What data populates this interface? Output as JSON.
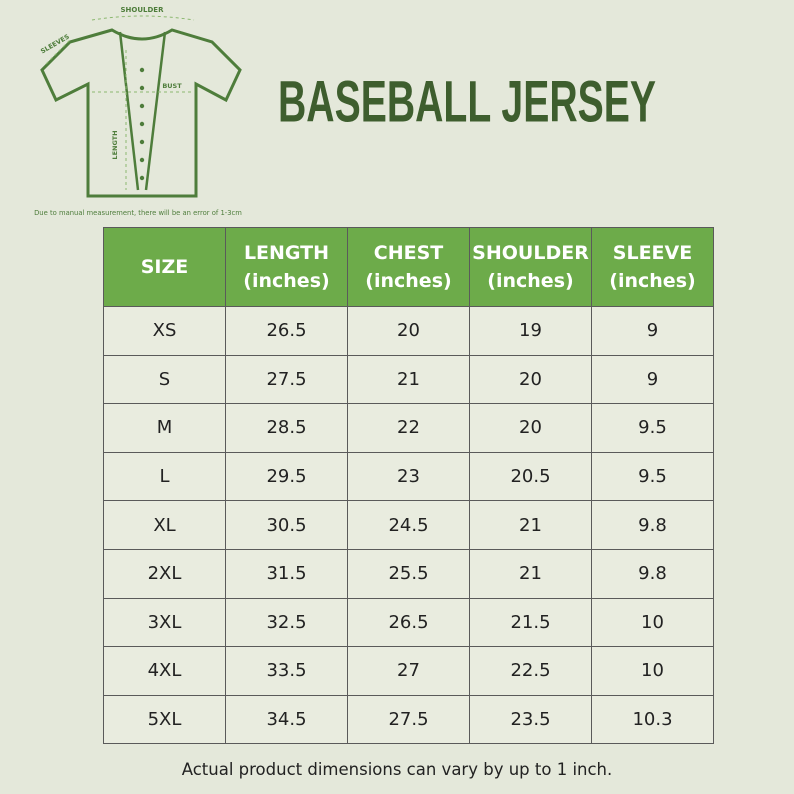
{
  "diagram": {
    "shoulder": "SHOULDER",
    "sleeves": "SLEEVES",
    "bust": "BUST",
    "length": "LENGTH",
    "note": "Due to manual measurement, there will be an error of 1-3cm"
  },
  "header": {
    "title": "BASEBALL JERSEY"
  },
  "table": {
    "columns": [
      {
        "name": "SIZE"
      },
      {
        "name": "LENGTH",
        "unit": "(inches)"
      },
      {
        "name": "CHEST",
        "unit": "(inches)"
      },
      {
        "name": "SHOULDER",
        "unit": "(inches)"
      },
      {
        "name": "SLEEVE",
        "unit": "(inches)"
      }
    ],
    "rows": [
      [
        "XS",
        26.5,
        20,
        19,
        9
      ],
      [
        "S",
        27.5,
        21,
        20,
        9
      ],
      [
        "M",
        28.5,
        22,
        20,
        9.5
      ],
      [
        "L",
        29.5,
        23,
        20.5,
        9.5
      ],
      [
        "XL",
        30.5,
        24.5,
        21,
        9.8
      ],
      [
        "2XL",
        31.5,
        25.5,
        21,
        9.8
      ],
      [
        "3XL",
        32.5,
        26.5,
        21.5,
        10
      ],
      [
        "4XL",
        33.5,
        27,
        22.5,
        10
      ],
      [
        "5XL",
        34.5,
        27.5,
        23.5,
        10.3
      ]
    ]
  },
  "footer": {
    "note": "Actual product dimensions can vary by up to 1 inch."
  }
}
